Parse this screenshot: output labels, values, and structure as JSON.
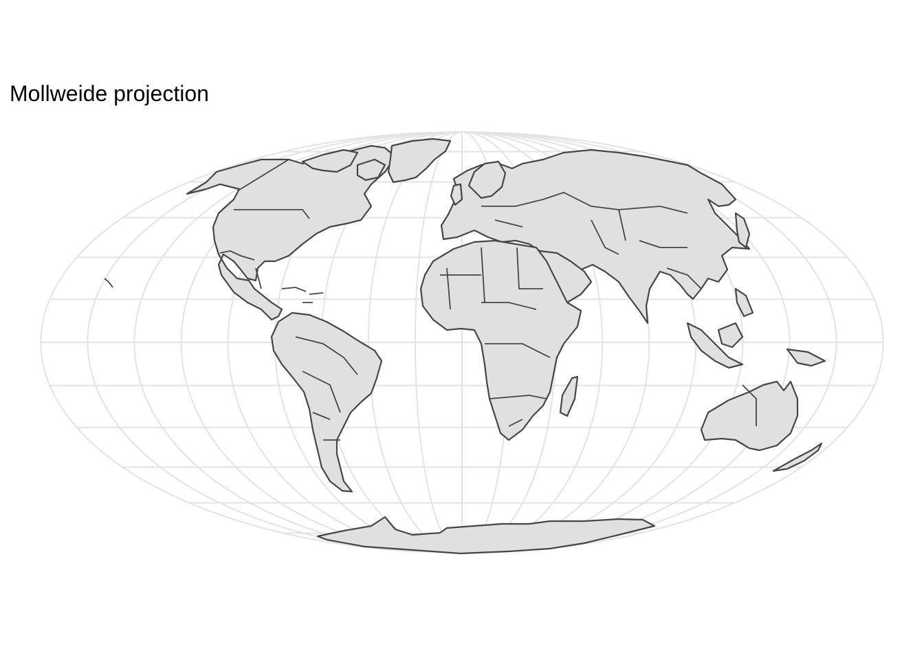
{
  "map": {
    "title": "Mollweide projection",
    "projection": "Mollweide",
    "graticule": {
      "visible": true,
      "lon_step_deg": 20,
      "lat_step_deg": 15
    },
    "colors": {
      "land": "#e0e0e0",
      "border": "#454545",
      "graticule": "#e3e3e3",
      "background": "#ffffff"
    },
    "central_meridian": 0
  }
}
